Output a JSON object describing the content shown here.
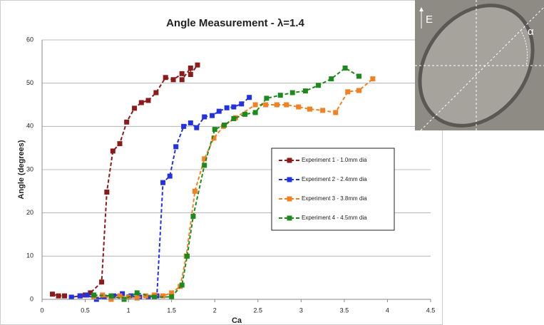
{
  "chart_data": {
    "type": "line",
    "title": "Angle Measurement - λ=1.4",
    "x_label": "Ca",
    "y_label": "Angle (degrees)",
    "xlim": [
      0,
      4.5
    ],
    "ylim": [
      0,
      60
    ],
    "xticks": [
      0,
      0.5,
      1,
      1.5,
      2,
      2.5,
      3,
      3.5,
      4,
      4.5
    ],
    "yticks": [
      0,
      10,
      20,
      30,
      40,
      50,
      60
    ],
    "grid": true,
    "legend": "right",
    "annotations": [
      "E",
      "α"
    ],
    "series": [
      {
        "name": "Experiment 1 - 1.0mm dia",
        "color": "#8b1a1a",
        "x": [
          0.12,
          0.19,
          0.26,
          0.34,
          0.44,
          0.5,
          0.56,
          0.69,
          0.75,
          0.82,
          0.9,
          0.98,
          1.07,
          1.15,
          1.23,
          1.32,
          1.43,
          1.52,
          1.62,
          1.62,
          1.72,
          1.72,
          1.8
        ],
        "values": [
          1.2,
          0.8,
          0.8,
          0.5,
          0.8,
          1.0,
          1.5,
          4,
          24.8,
          34.3,
          36,
          41,
          44.2,
          45.5,
          46,
          47.8,
          51.3,
          50.8,
          52.2,
          50.8,
          53.5,
          52,
          54.2
        ]
      },
      {
        "name": "Experiment 2 - 2.4mm dia",
        "color": "#2233dd",
        "x": [
          0.34,
          0.44,
          0.52,
          0.63,
          0.72,
          0.83,
          0.93,
          1.03,
          1.13,
          1.23,
          1.33,
          1.4,
          1.48,
          1.55,
          1.64,
          1.72,
          1.79,
          1.88,
          1.97,
          2.05,
          2.14,
          2.22,
          2.31,
          2.4
        ],
        "values": [
          0.5,
          0.8,
          1.0,
          0,
          0.5,
          0.8,
          1.3,
          0.8,
          0.5,
          0.5,
          0.8,
          27,
          28.5,
          35.3,
          40,
          40.8,
          39.7,
          42.2,
          42.5,
          43.5,
          44.3,
          44.5,
          45.2,
          46.7
        ]
      },
      {
        "name": "Experiment 3 - 3.8mm dia",
        "color": "#f08224",
        "x": [
          0.6,
          0.7,
          0.8,
          0.9,
          1.0,
          1.1,
          1.2,
          1.3,
          1.4,
          1.5,
          1.6,
          1.67,
          1.77,
          1.88,
          1.99,
          2.1,
          2.24,
          2.47,
          2.59,
          2.72,
          2.83,
          2.97,
          3.1,
          3.25,
          3.4,
          3.54,
          3.67,
          3.83
        ],
        "values": [
          0.5,
          1.0,
          0,
          0.8,
          0.5,
          0.3,
          0.8,
          1.0,
          0.8,
          1.5,
          3,
          10,
          25,
          32.5,
          37.3,
          40,
          42,
          45,
          45,
          45,
          45,
          44.5,
          44,
          43.7,
          43.2,
          48,
          48.3,
          51
        ]
      },
      {
        "name": "Experiment 4 - 4.5mm dia",
        "color": "#1e8a1e",
        "x": [
          0.6,
          0.8,
          0.95,
          1.1,
          1.3,
          1.5,
          1.62,
          1.68,
          1.75,
          1.88,
          2.0,
          2.11,
          2.22,
          2.35,
          2.47,
          2.6,
          2.76,
          2.9,
          3.05,
          3.2,
          3.35,
          3.51,
          3.67
        ],
        "values": [
          1.0,
          0.8,
          0,
          1.5,
          0.5,
          0.6,
          3.3,
          10,
          19.2,
          31,
          39.3,
          40.3,
          41.8,
          42.8,
          43.2,
          46.5,
          47.2,
          47.8,
          48.2,
          49.5,
          51,
          53.5,
          51.6
        ]
      }
    ]
  }
}
